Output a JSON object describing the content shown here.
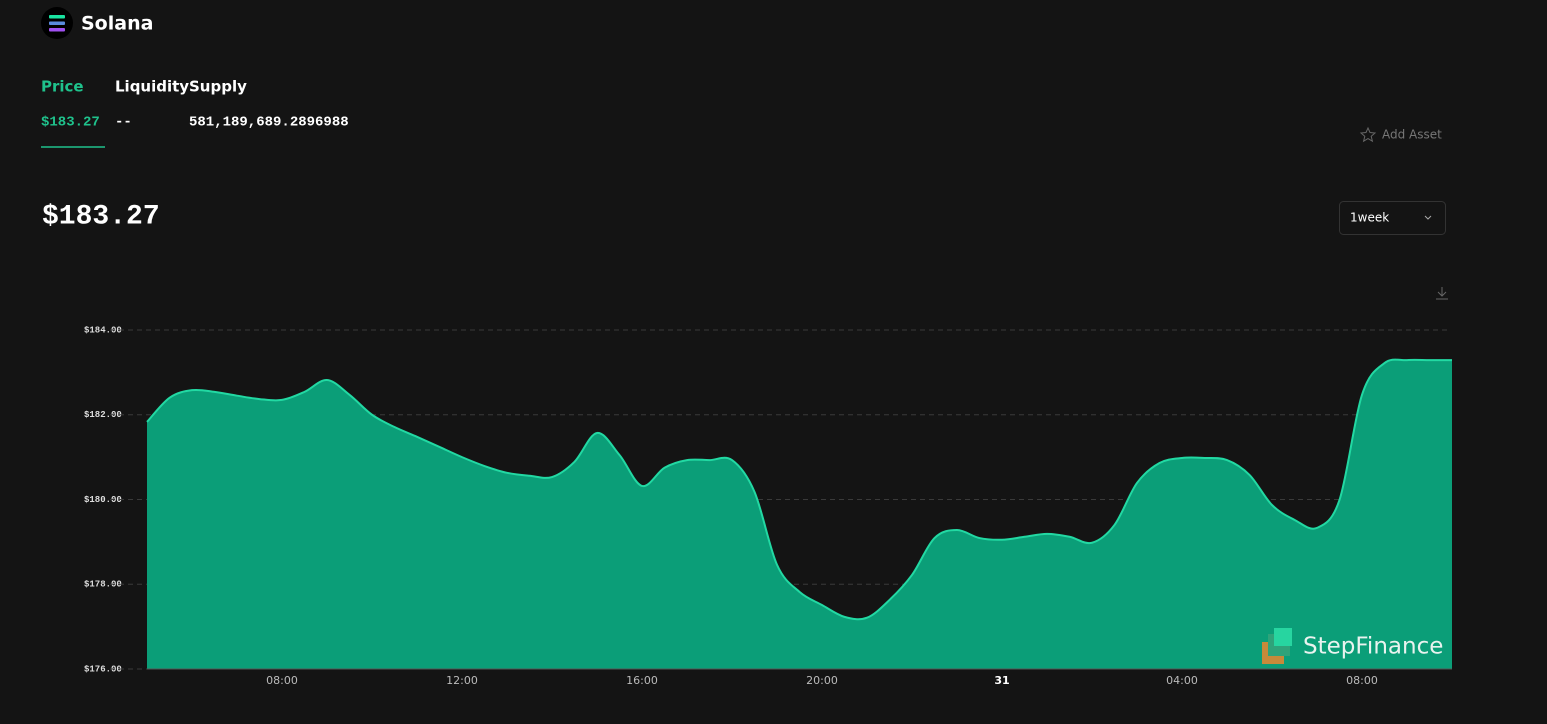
{
  "header": {
    "asset_name": "Solana",
    "add_asset": "Add Asset",
    "big_price": "$183.27",
    "range_select": "1week",
    "watermark": "StepFinance"
  },
  "stats": [
    {
      "label": "Price",
      "value": "$183.27"
    },
    {
      "label": "Liquidity",
      "value": "--"
    },
    {
      "label": "Supply",
      "value": "581,189,689.2896988"
    }
  ],
  "chart_data": {
    "type": "area",
    "categories": [
      null,
      null,
      null,
      null,
      null,
      null,
      "08:00",
      null,
      null,
      null,
      null,
      null,
      null,
      null,
      "12:00",
      null,
      null,
      null,
      null,
      null,
      null,
      null,
      "16:00",
      null,
      null,
      null,
      null,
      null,
      null,
      null,
      "20:00",
      null,
      null,
      null,
      null,
      null,
      null,
      null,
      "31",
      null,
      null,
      null,
      null,
      null,
      null,
      null,
      "04:00",
      null,
      null,
      null,
      null,
      null,
      null,
      null,
      "08:00",
      null,
      null,
      null,
      null
    ],
    "values": [
      181.83,
      182.4,
      182.58,
      182.54,
      182.45,
      182.37,
      182.35,
      182.54,
      182.82,
      182.47,
      182.0,
      181.71,
      181.48,
      181.24,
      181.0,
      180.79,
      180.63,
      180.56,
      180.53,
      180.89,
      181.57,
      181.05,
      180.32,
      180.75,
      180.93,
      180.93,
      180.93,
      180.18,
      178.46,
      177.82,
      177.51,
      177.23,
      177.21,
      177.63,
      178.22,
      179.09,
      179.28,
      179.09,
      179.05,
      179.12,
      179.19,
      179.12,
      178.98,
      179.4,
      180.39,
      180.86,
      180.98,
      180.98,
      180.93,
      180.58,
      179.87,
      179.52,
      179.33,
      179.99,
      182.47,
      183.22,
      183.29,
      183.29,
      183.29
    ],
    "color": "#0b9e78",
    "line_color": "#22d9a3",
    "ylim": [
      176,
      184
    ],
    "yticks": [
      {
        "value": 176,
        "label": "$176.00"
      },
      {
        "value": 178,
        "label": "$178.00"
      },
      {
        "value": 180,
        "label": "$180.00"
      },
      {
        "value": 182,
        "label": "$182.00"
      },
      {
        "value": 184,
        "label": "$184.00"
      }
    ],
    "grid": true
  }
}
